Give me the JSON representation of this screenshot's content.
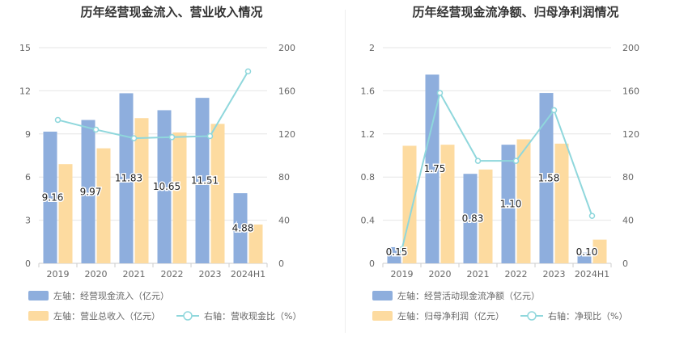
{
  "chart_data": [
    {
      "type": "bar",
      "title": "历年经营现金流入、营业收入情况",
      "categories": [
        "2019",
        "2020",
        "2021",
        "2022",
        "2023",
        "2024H1"
      ],
      "left_axis": {
        "ticks": [
          "0",
          "3",
          "6",
          "9",
          "12",
          "15"
        ],
        "ylim": [
          0,
          15
        ]
      },
      "right_axis": {
        "ticks": [
          "0",
          "40",
          "80",
          "120",
          "160",
          "200"
        ],
        "ylim": [
          0,
          200
        ]
      },
      "grid": true,
      "series": [
        {
          "name": "左轴：经营现金流入（亿元）",
          "kind": "bar",
          "axis": "left",
          "color": "#8eaedd",
          "values": [
            9.16,
            9.97,
            11.83,
            10.65,
            11.51,
            4.88
          ],
          "labels": [
            "9.16",
            "9.97",
            "11.83",
            "10.65",
            "11.51",
            "4.88"
          ]
        },
        {
          "name": "左轴：营业总收入（亿元）",
          "kind": "bar",
          "axis": "left",
          "color": "#fddba0",
          "values": [
            6.9,
            8.0,
            10.1,
            9.1,
            9.7,
            2.7
          ]
        },
        {
          "name": "右轴：营收现金比（%）",
          "kind": "line",
          "axis": "right",
          "color": "#8fd7dc",
          "values": [
            133,
            124,
            116,
            117,
            118,
            178
          ]
        }
      ],
      "legend_placement": "bottom-left"
    },
    {
      "type": "bar",
      "title": "历年经营现金流净额、归母净利润情况",
      "categories": [
        "2019",
        "2020",
        "2021",
        "2022",
        "2023",
        "2024H1"
      ],
      "left_axis": {
        "ticks": [
          "0",
          "0.4",
          "0.8",
          "1.2",
          "1.6",
          "2"
        ],
        "ylim": [
          0,
          2
        ]
      },
      "right_axis": {
        "ticks": [
          "0",
          "40",
          "80",
          "120",
          "160",
          "200"
        ],
        "ylim": [
          0,
          200
        ]
      },
      "grid": true,
      "series": [
        {
          "name": "左轴：经营活动现金流净额（亿元）",
          "kind": "bar",
          "axis": "left",
          "color": "#8eaedd",
          "values": [
            0.15,
            1.75,
            0.83,
            1.1,
            1.58,
            0.1
          ],
          "labels": [
            "0.15",
            "1.75",
            "0.83",
            "1.10",
            "1.58",
            "0.10"
          ]
        },
        {
          "name": "左轴：归母净利润（亿元）",
          "kind": "bar",
          "axis": "left",
          "color": "#fddba0",
          "values": [
            1.09,
            1.1,
            0.87,
            1.15,
            1.11,
            0.22
          ]
        },
        {
          "name": "右轴：净现比（%）",
          "kind": "line",
          "axis": "right",
          "color": "#8fd7dc",
          "values": [
            13,
            158,
            95,
            95,
            142,
            44
          ]
        }
      ],
      "legend_placement": "bottom-left"
    }
  ]
}
